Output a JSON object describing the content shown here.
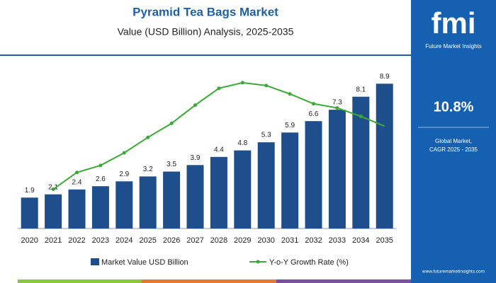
{
  "chart_data": {
    "type": "combo",
    "title": "Pyramid Tea Bags Market",
    "subtitle": "Value (USD Billion) Analysis, 2025-2035",
    "categories": [
      "2020",
      "2021",
      "2022",
      "2023",
      "2024",
      "2025",
      "2026",
      "2027",
      "2028",
      "2029",
      "2030",
      "2031",
      "2032",
      "2033",
      "2034",
      "2035"
    ],
    "series": [
      {
        "name": "Market Value USD Billion",
        "type": "bar",
        "color": "#1f4e8c",
        "values": [
          1.9,
          2.1,
          2.4,
          2.6,
          2.9,
          3.2,
          3.5,
          3.9,
          4.4,
          4.8,
          5.3,
          5.9,
          6.6,
          7.3,
          8.1,
          8.9
        ]
      },
      {
        "name": "Y-o-Y Growth Rate (%)",
        "type": "line",
        "axis": "y2",
        "color": "#3aa935",
        "values": [
          null,
          7.8,
          9.0,
          9.5,
          10.4,
          11.5,
          12.5,
          13.8,
          15.0,
          15.4,
          15.2,
          14.6,
          13.9,
          13.6,
          13.0,
          12.3
        ]
      }
    ],
    "ylim": [
      0,
      10
    ],
    "y2lim": [
      5,
      16
    ],
    "grid": false,
    "legend": "bottom"
  },
  "brand": {
    "logo": "fmi",
    "name": "Future Market Insights",
    "cagr": "10.8%",
    "cagr_label_1": "Global Market,",
    "cagr_label_2": "CAGR 2025 - 2035",
    "url": "www.futuremarketinsights.com"
  }
}
